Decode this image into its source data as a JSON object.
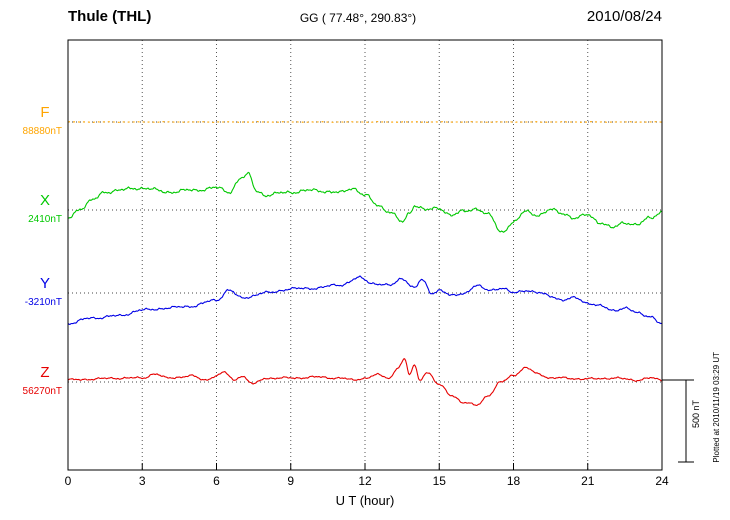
{
  "header": {
    "station": "Thule (THL)",
    "coords": "GG ( 77.48°, 290.83°)",
    "date": "2010/08/24"
  },
  "axis": {
    "xlabel": "U T (hour)"
  },
  "scale_bar": {
    "label": "500 nT"
  },
  "footer_note": "Plotted at 2010/11/19 03:29 UT",
  "chart_data": {
    "type": "line",
    "title": "Thule (THL)",
    "subtitle": "GG ( 77.48°, 290.83°)",
    "date": "2010/08/24",
    "xlabel": "U T (hour)",
    "xlim": [
      0,
      24
    ],
    "x_tick_values": [
      0,
      3,
      6,
      9,
      12,
      15,
      18,
      21,
      24
    ],
    "scale_nT": 500,
    "grid": "dotted vertical gridlines every 3 h, dotted horizontal baseline per component",
    "legend_position": "left margin component labels",
    "series": [
      {
        "name": "F",
        "baseline_label": "88880nT",
        "color": "#FFA500",
        "noise_nT": 2,
        "dash": "2 3",
        "points": [
          [
            0,
            0
          ],
          [
            24,
            0
          ]
        ]
      },
      {
        "name": "X",
        "baseline_label": "2410nT",
        "color": "#00C800",
        "noise_nT": 13,
        "points": [
          [
            0,
            -50
          ],
          [
            0.5,
            10
          ],
          [
            1,
            60
          ],
          [
            1.5,
            110
          ],
          [
            2,
            120
          ],
          [
            3,
            135
          ],
          [
            4,
            110
          ],
          [
            5,
            120
          ],
          [
            6,
            135
          ],
          [
            6.5,
            110
          ],
          [
            7,
            195
          ],
          [
            7.3,
            215
          ],
          [
            7.6,
            120
          ],
          [
            8,
            90
          ],
          [
            9,
            110
          ],
          [
            10,
            120
          ],
          [
            11,
            105
          ],
          [
            11.5,
            135
          ],
          [
            12,
            90
          ],
          [
            12.5,
            30
          ],
          [
            13,
            -10
          ],
          [
            13.5,
            -75
          ],
          [
            13.8,
            -20
          ],
          [
            14,
            30
          ],
          [
            14.5,
            0
          ],
          [
            15,
            10
          ],
          [
            15.5,
            -30
          ],
          [
            16,
            -10
          ],
          [
            16.5,
            10
          ],
          [
            17,
            -30
          ],
          [
            17.5,
            -135
          ],
          [
            18,
            -75
          ],
          [
            18.5,
            -10
          ],
          [
            19,
            -30
          ],
          [
            19.5,
            0
          ],
          [
            20,
            -20
          ],
          [
            20.5,
            -50
          ],
          [
            21,
            -30
          ],
          [
            21.5,
            -75
          ],
          [
            22,
            -110
          ],
          [
            22.5,
            -75
          ],
          [
            23,
            -90
          ],
          [
            23.5,
            -50
          ],
          [
            24,
            -10
          ]
        ]
      },
      {
        "name": "Y",
        "baseline_label": "-3210nT",
        "color": "#0000E6",
        "noise_nT": 10,
        "points": [
          [
            0,
            -185
          ],
          [
            1,
            -152
          ],
          [
            2,
            -140
          ],
          [
            3,
            -105
          ],
          [
            4,
            -92
          ],
          [
            5,
            -80
          ],
          [
            6,
            -43
          ],
          [
            6.5,
            18
          ],
          [
            7,
            -30
          ],
          [
            8,
            0
          ],
          [
            9,
            25
          ],
          [
            10,
            30
          ],
          [
            11,
            50
          ],
          [
            11.8,
            92
          ],
          [
            12.3,
            60
          ],
          [
            13,
            45
          ],
          [
            13.5,
            90
          ],
          [
            14,
            30
          ],
          [
            14.3,
            80
          ],
          [
            14.7,
            0
          ],
          [
            15,
            18
          ],
          [
            15.5,
            -18
          ],
          [
            16,
            0
          ],
          [
            16.5,
            43
          ],
          [
            17,
            18
          ],
          [
            17.5,
            30
          ],
          [
            18,
            0
          ],
          [
            18.5,
            18
          ],
          [
            19,
            0
          ],
          [
            19.5,
            -18
          ],
          [
            20,
            -43
          ],
          [
            20.5,
            -30
          ],
          [
            21,
            -60
          ],
          [
            21.5,
            -80
          ],
          [
            22,
            -105
          ],
          [
            22.5,
            -92
          ],
          [
            23,
            -122
          ],
          [
            23.5,
            -140
          ],
          [
            24,
            -190
          ]
        ]
      },
      {
        "name": "Z",
        "baseline_label": "56270nT",
        "color": "#E60000",
        "noise_nT": 8,
        "points": [
          [
            0,
            12
          ],
          [
            1,
            18
          ],
          [
            2,
            24
          ],
          [
            3,
            24
          ],
          [
            3.5,
            50
          ],
          [
            4,
            24
          ],
          [
            5,
            37
          ],
          [
            5.5,
            12
          ],
          [
            6,
            37
          ],
          [
            6.3,
            60
          ],
          [
            6.7,
            12
          ],
          [
            7,
            37
          ],
          [
            7.5,
            -12
          ],
          [
            8,
            24
          ],
          [
            9,
            24
          ],
          [
            10,
            30
          ],
          [
            11,
            24
          ],
          [
            11.5,
            12
          ],
          [
            12,
            24
          ],
          [
            12.5,
            43
          ],
          [
            13,
            24
          ],
          [
            13.3,
            85
          ],
          [
            13.6,
            135
          ],
          [
            13.8,
            43
          ],
          [
            14,
            105
          ],
          [
            14.2,
            12
          ],
          [
            14.5,
            60
          ],
          [
            15,
            -18
          ],
          [
            15.5,
            -80
          ],
          [
            16,
            -128
          ],
          [
            16.5,
            -140
          ],
          [
            17,
            -80
          ],
          [
            17.5,
            0
          ],
          [
            18,
            43
          ],
          [
            18.5,
            85
          ],
          [
            19,
            50
          ],
          [
            19.5,
            24
          ],
          [
            20,
            24
          ],
          [
            21,
            18
          ],
          [
            22,
            24
          ],
          [
            23,
            12
          ],
          [
            23.5,
            24
          ],
          [
            24,
            12
          ]
        ]
      }
    ]
  }
}
